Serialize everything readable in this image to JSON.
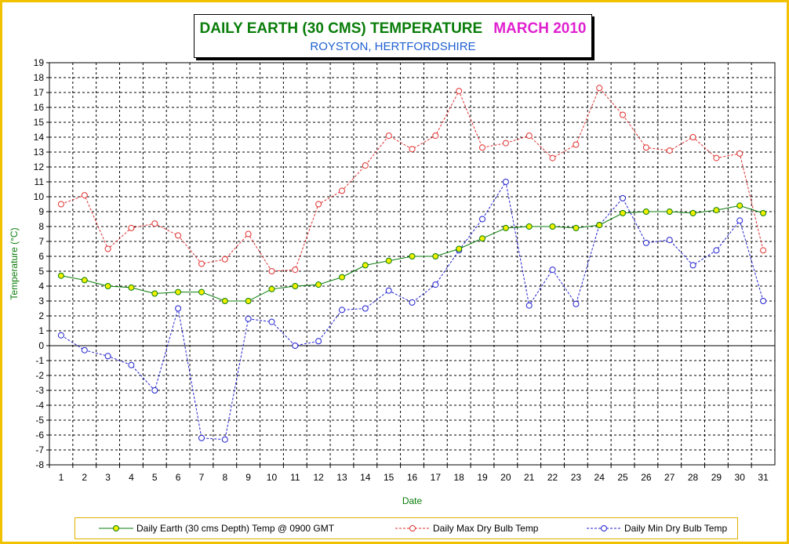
{
  "title": {
    "main": "DAILY EARTH (30 CMS) TEMPERATURE",
    "month": "MARCH 2010",
    "subtitle": "ROYSTON, HERTFORDSHIRE"
  },
  "colors": {
    "frame": "#f2c200",
    "title_main": "#0a7d0a",
    "title_month": "#e020d0",
    "subtitle": "#1f5fd0",
    "axis_title": "#0a7d0a",
    "earth_line": "#0a7d0a",
    "earth_marker": "#f0f000",
    "max_line": "#e03030",
    "min_line": "#2020d0"
  },
  "chart_data": {
    "type": "line",
    "xlabel": "Date",
    "ylabel": "Temperature (°C)",
    "x": [
      1,
      2,
      3,
      4,
      5,
      6,
      7,
      8,
      9,
      10,
      11,
      12,
      13,
      14,
      15,
      16,
      17,
      18,
      19,
      20,
      21,
      22,
      23,
      24,
      25,
      26,
      27,
      28,
      29,
      30,
      31
    ],
    "ylim": [
      -8,
      19
    ],
    "yticks": [
      19,
      18,
      17,
      16,
      15,
      14,
      13,
      12,
      11,
      10,
      9,
      8,
      7,
      6,
      5,
      4,
      3,
      2,
      1,
      0,
      -1,
      -2,
      -3,
      -4,
      -5,
      -6,
      -7,
      -8
    ],
    "grid": true,
    "legend_position": "bottom",
    "series": [
      {
        "name": "Daily Earth (30 cms Depth) Temp @ 0900 GMT",
        "style": "solid",
        "color": "#0a7d0a",
        "marker": "filled",
        "values": [
          4.7,
          4.4,
          4.0,
          3.9,
          3.5,
          3.6,
          3.6,
          3.0,
          3.0,
          3.8,
          4.0,
          4.1,
          4.6,
          5.4,
          5.7,
          6.0,
          6.0,
          6.5,
          7.2,
          7.9,
          8.0,
          8.0,
          7.9,
          8.1,
          8.9,
          9.0,
          9.0,
          8.9,
          9.1,
          9.4,
          8.9
        ]
      },
      {
        "name": "Daily Max Dry Bulb Temp",
        "style": "dashed",
        "color": "#e03030",
        "marker": "open",
        "values": [
          9.5,
          10.1,
          6.5,
          7.9,
          8.2,
          7.4,
          5.5,
          5.8,
          7.5,
          5.0,
          5.1,
          9.5,
          10.4,
          12.1,
          14.1,
          13.2,
          14.1,
          17.1,
          13.3,
          13.6,
          14.1,
          12.6,
          13.5,
          17.3,
          15.5,
          13.3,
          13.1,
          14.0,
          12.6,
          12.9,
          6.4
        ]
      },
      {
        "name": "Daily Min Dry Bulb Temp",
        "style": "dashed",
        "color": "#2020d0",
        "marker": "open",
        "values": [
          0.7,
          -0.3,
          -0.7,
          -1.3,
          -3.0,
          2.5,
          -6.2,
          -6.3,
          1.8,
          1.6,
          0.0,
          0.3,
          2.4,
          2.5,
          3.7,
          2.9,
          4.1,
          6.4,
          8.5,
          11.0,
          2.7,
          5.1,
          2.8,
          8.1,
          9.9,
          6.9,
          7.1,
          5.4,
          6.4,
          8.4,
          3.0
        ]
      }
    ]
  }
}
